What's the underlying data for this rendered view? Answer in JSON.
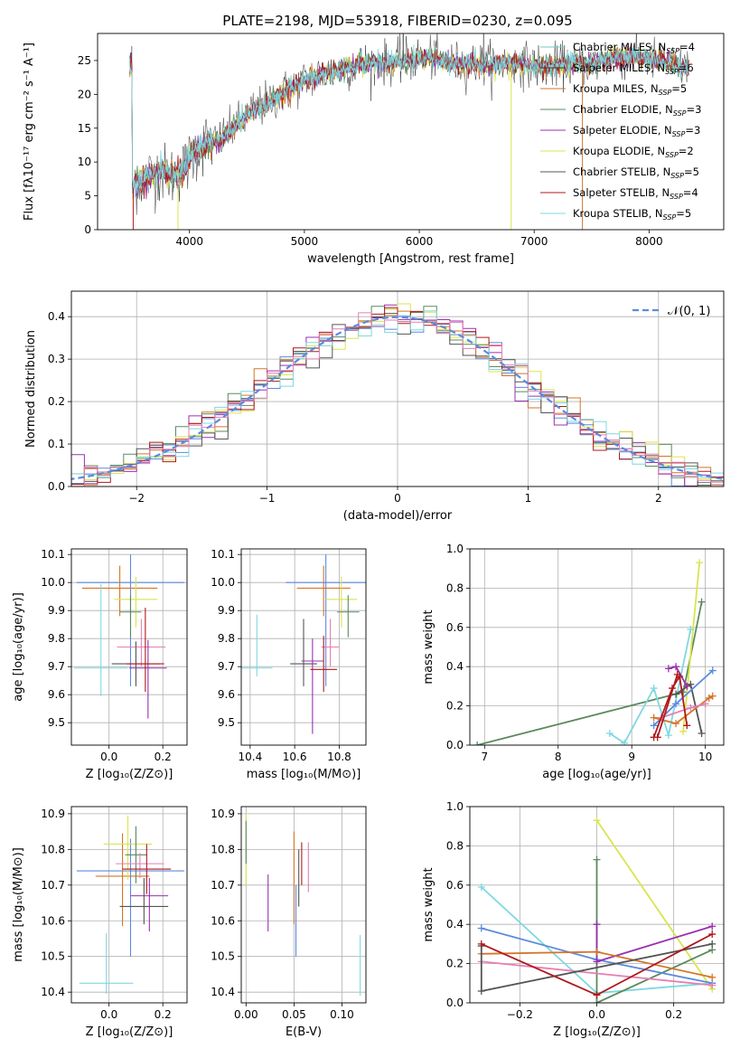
{
  "title": "PLATE=2198, MJD=53918, FIBERID=0230, z=0.095",
  "colors": {
    "Chabrier MILES": "#72c9c4",
    "Salpeter MILES": "#3a3a3a",
    "Kroupa MILES": "#d4752a",
    "Chabrier ELODIE": "#5b8a5e",
    "Salpeter ELODIE": "#9a30b0",
    "Kroupa ELODIE": "#d9e54e",
    "Chabrier STELIB": "#555555",
    "Salpeter STELIB": "#b0191c",
    "Kroupa STELIB": "#7fd8e0",
    "Blue": "#5b8ae0",
    "Pink": "#e57fb4",
    "Gaussian": "#5b8ae0"
  },
  "chart_data": [
    {
      "panel": "spectrum",
      "type": "line",
      "xlabel": "wavelength [Angstrom, rest frame]",
      "ylabel": "Flux [fλ10⁻¹⁷ erg cm⁻² s⁻¹ A⁻¹]",
      "xlim": [
        3200,
        8650
      ],
      "ylim": [
        0,
        29
      ],
      "xticks": [
        4000,
        5000,
        6000,
        7000,
        8000
      ],
      "yticks": [
        0,
        5,
        10,
        15,
        20,
        25
      ],
      "legend": [
        {
          "name": "Chabrier MILES, N",
          "sub": "SSP",
          "n": "=4",
          "color": "#72c9c4"
        },
        {
          "name": "Salpeter MILES, N",
          "sub": "SSP",
          "n": "=6",
          "color": "#3a3a3a"
        },
        {
          "name": "Kroupa MILES, N",
          "sub": "SSP",
          "n": "=5",
          "color": "#d4752a"
        },
        {
          "name": "Chabrier ELODIE, N",
          "sub": "SSP",
          "n": "=3",
          "color": "#5b8a5e"
        },
        {
          "name": "Salpeter ELODIE, N",
          "sub": "SSP",
          "n": "=3",
          "color": "#9a30b0"
        },
        {
          "name": "Kroupa ELODIE, N",
          "sub": "SSP",
          "n": "=2",
          "color": "#d9e54e"
        },
        {
          "name": "Chabrier STELIB, N",
          "sub": "SSP",
          "n": "=5",
          "color": "#555555"
        },
        {
          "name": "Salpeter STELIB, N",
          "sub": "SSP",
          "n": "=4",
          "color": "#b0191c"
        },
        {
          "name": "Kroupa STELIB, N",
          "sub": "SSP",
          "n": "=5",
          "color": "#7fd8e0"
        }
      ],
      "continuum": [
        [
          3500,
          6.0
        ],
        [
          3550,
          7.0
        ],
        [
          3650,
          8.0
        ],
        [
          3750,
          8.5
        ],
        [
          3850,
          8.0
        ],
        [
          3950,
          9.0
        ],
        [
          4050,
          11.5
        ],
        [
          4150,
          13.0
        ],
        [
          4250,
          13.0
        ],
        [
          4350,
          14.5
        ],
        [
          4450,
          16.0
        ],
        [
          4550,
          17.5
        ],
        [
          4700,
          19.0
        ],
        [
          4850,
          20.5
        ],
        [
          5000,
          22.0
        ],
        [
          5150,
          23.0
        ],
        [
          5300,
          23.5
        ],
        [
          5500,
          24.5
        ],
        [
          5700,
          24.7
        ],
        [
          5900,
          25.0
        ],
        [
          6100,
          25.5
        ],
        [
          6300,
          24.5
        ],
        [
          6500,
          24.5
        ],
        [
          6700,
          24.5
        ],
        [
          6900,
          24.5
        ],
        [
          7100,
          24.0
        ],
        [
          7300,
          24.5
        ],
        [
          7500,
          24.5
        ],
        [
          7700,
          25.5
        ],
        [
          7900,
          25.5
        ],
        [
          8100,
          25.0
        ],
        [
          8300,
          24.0
        ]
      ],
      "spikes": [
        {
          "x": 3510,
          "y": -1,
          "color": "#b0191c"
        },
        {
          "x": 3900,
          "y": -1,
          "color": "#d9e54e"
        },
        {
          "x": 6800,
          "y": -1,
          "color": "#d9e54e"
        },
        {
          "x": 6780,
          "y": 22,
          "color": "#d9e54e"
        },
        {
          "x": 7420,
          "y": -1,
          "color": "#d4752a"
        },
        {
          "x": 5860,
          "y": 30,
          "color": "#3a3a3a"
        },
        {
          "x": 6560,
          "y": 31,
          "color": "#555555"
        }
      ]
    },
    {
      "panel": "residual-histogram",
      "type": "histogram",
      "xlabel": "(data-model)/error",
      "ylabel": "Normed distribution",
      "xlim": [
        -2.5,
        2.5
      ],
      "ylim": [
        0,
        0.46
      ],
      "xticks": [
        -2,
        -1,
        0,
        1,
        2
      ],
      "yticks": [
        0.0,
        0.1,
        0.2,
        0.3,
        0.4
      ],
      "legend": [
        {
          "name": "𝒩(0, 1)",
          "color": "#5b8ae0",
          "style": "dashed"
        }
      ],
      "bin_width": 0.1,
      "series_colors": [
        "#5b8ae0",
        "#d4752a",
        "#5b8a5e",
        "#9a30b0",
        "#d9e54e",
        "#555555",
        "#b0191c",
        "#7fd8e0",
        "#e57fb4"
      ]
    },
    {
      "panel": "age-vs-Z",
      "type": "errorbar",
      "xlabel": "Z [log₁₀(Z/Z⊙)]",
      "ylabel": "age  [log₁₀(age/yr)]",
      "xlim": [
        -0.14,
        0.29
      ],
      "ylim": [
        9.42,
        10.12
      ],
      "xticks": [
        0.0,
        0.2
      ],
      "yticks": [
        9.5,
        9.6,
        9.7,
        9.8,
        9.9,
        10.0,
        10.1
      ],
      "points": [
        {
          "color": "#5b8ae0",
          "x": 0.08,
          "xerr": 0.2,
          "y": 10.0,
          "yerr": [
            0.37,
            0.1
          ]
        },
        {
          "color": "#d4752a",
          "x": 0.04,
          "xerr": 0.14,
          "y": 9.98,
          "yerr": [
            0.1,
            0.08
          ]
        },
        {
          "color": "#d9e54e",
          "x": 0.1,
          "xerr": 0.08,
          "y": 9.94,
          "yerr": [
            0.1,
            0.08
          ]
        },
        {
          "color": "#5b8a5e",
          "x": 0.08,
          "xerr": 0.04,
          "y": 9.895,
          "yerr": [
            0.09,
            0.06
          ]
        },
        {
          "color": "#e57fb4",
          "x": 0.12,
          "xerr": 0.09,
          "y": 9.77,
          "yerr": [
            0.07,
            0.1
          ]
        },
        {
          "color": "#7fd8e0",
          "x": -0.03,
          "xerr": 0.1,
          "y": 9.695,
          "yerr": [
            0.1,
            0.3
          ]
        },
        {
          "color": "#555555",
          "x": 0.1,
          "xerr": 0.09,
          "y": 9.71,
          "yerr": [
            0.08,
            0.08
          ]
        },
        {
          "color": "#9a30b0",
          "x": 0.145,
          "xerr": 0.07,
          "y": 9.695,
          "yerr": [
            0.18,
            0.1
          ]
        },
        {
          "color": "#b0191c",
          "x": 0.135,
          "xerr": 0.07,
          "y": 9.71,
          "yerr": [
            0.1,
            0.2
          ]
        }
      ]
    },
    {
      "panel": "age-vs-mass",
      "type": "errorbar",
      "xlabel": "mass [log₁₀(M/M⊙)]",
      "ylabel": "",
      "xlim": [
        10.36,
        10.92
      ],
      "ylim": [
        9.42,
        10.12
      ],
      "xticks": [
        10.4,
        10.6,
        10.8
      ],
      "yticks": [
        9.5,
        9.6,
        9.7,
        9.8,
        9.9,
        10.0,
        10.1
      ],
      "points": [
        {
          "color": "#5b8ae0",
          "x": 10.74,
          "xerr": 0.18,
          "y": 10.0,
          "yerr": [
            0.37,
            0.1
          ]
        },
        {
          "color": "#d4752a",
          "x": 10.73,
          "xerr": 0.12,
          "y": 9.98,
          "yerr": [
            0.1,
            0.08
          ]
        },
        {
          "color": "#d9e54e",
          "x": 10.81,
          "xerr": 0.07,
          "y": 9.94,
          "yerr": [
            0.1,
            0.08
          ]
        },
        {
          "color": "#5b8a5e",
          "x": 10.84,
          "xerr": 0.05,
          "y": 9.895,
          "yerr": [
            0.09,
            0.06
          ]
        },
        {
          "color": "#e57fb4",
          "x": 10.76,
          "xerr": 0.04,
          "y": 9.77,
          "yerr": [
            0.07,
            0.1
          ]
        },
        {
          "color": "#7fd8e0",
          "x": 10.43,
          "xerr": 0.07,
          "y": 9.695,
          "yerr": [
            0.03,
            0.19
          ]
        },
        {
          "color": "#555555",
          "x": 10.64,
          "xerr": 0.06,
          "y": 9.71,
          "yerr": [
            0.08,
            0.16
          ]
        },
        {
          "color": "#9a30b0",
          "x": 10.68,
          "xerr": 0.05,
          "y": 9.72,
          "yerr": [
            0.26,
            0.08
          ]
        },
        {
          "color": "#b0191c",
          "x": 10.73,
          "xerr": 0.06,
          "y": 9.69,
          "yerr": [
            0.08,
            0.12
          ]
        }
      ]
    },
    {
      "panel": "massweight-vs-age",
      "type": "line",
      "xlabel": "age  [log₁₀(age/yr)]",
      "ylabel": "mass weight",
      "xlim": [
        6.8,
        10.25
      ],
      "ylim": [
        0.0,
        1.0
      ],
      "xticks": [
        7,
        8,
        9,
        10
      ],
      "yticks": [
        0.0,
        0.2,
        0.4,
        0.6,
        0.8,
        1.0
      ],
      "series": [
        {
          "color": "#5b8a5e",
          "x": [
            6.9,
            9.7,
            9.95
          ],
          "y": [
            0.0,
            0.27,
            0.73
          ]
        },
        {
          "color": "#d9e54e",
          "x": [
            9.7,
            9.92
          ],
          "y": [
            0.07,
            0.93
          ]
        },
        {
          "color": "#7fd8e0",
          "x": [
            8.7,
            8.9,
            9.3,
            9.5,
            9.8
          ],
          "y": [
            0.06,
            0.01,
            0.29,
            0.05,
            0.59
          ]
        },
        {
          "color": "#555555",
          "x": [
            9.6,
            9.8,
            9.95
          ],
          "y": [
            0.26,
            0.31,
            0.06
          ]
        },
        {
          "color": "#9a30b0",
          "x": [
            9.5,
            9.6,
            9.75
          ],
          "y": [
            0.39,
            0.4,
            0.3
          ]
        },
        {
          "color": "#5b8ae0",
          "x": [
            9.3,
            9.6,
            10.1
          ],
          "y": [
            0.1,
            0.21,
            0.38
          ]
        },
        {
          "color": "#d4752a",
          "x": [
            9.3,
            9.6,
            10.05,
            10.1
          ],
          "y": [
            0.14,
            0.11,
            0.24,
            0.25
          ]
        },
        {
          "color": "#e57fb4",
          "x": [
            9.4,
            9.8,
            10.0
          ],
          "y": [
            0.14,
            0.19,
            0.21
          ]
        },
        {
          "color": "#b0191c",
          "x": [
            9.3,
            9.55,
            9.65,
            9.75
          ],
          "y": [
            0.04,
            0.29,
            0.35,
            0.1
          ]
        },
        {
          "color": "#b0191c",
          "x": [
            9.35,
            9.62
          ],
          "y": [
            0.04,
            0.36
          ]
        }
      ]
    },
    {
      "panel": "mass-vs-Z",
      "type": "errorbar",
      "xlabel": "Z [log₁₀(Z/Z⊙)]",
      "ylabel": "mass [log₁₀(M/M⊙)]",
      "xlim": [
        -0.14,
        0.29
      ],
      "ylim": [
        10.37,
        10.92
      ],
      "xticks": [
        0.0,
        0.2
      ],
      "yticks": [
        10.4,
        10.5,
        10.6,
        10.7,
        10.8,
        10.9
      ],
      "points": [
        {
          "color": "#5b8ae0",
          "x": 0.08,
          "xerr": 0.2,
          "y": 10.74,
          "yerr": [
            0.24,
            0.09
          ]
        },
        {
          "color": "#d4752a",
          "x": 0.05,
          "xerr": 0.1,
          "y": 10.725,
          "yerr": [
            0.14,
            0.12
          ]
        },
        {
          "color": "#d9e54e",
          "x": 0.07,
          "xerr": 0.09,
          "y": 10.815,
          "yerr": [
            0.1,
            0.08
          ]
        },
        {
          "color": "#5b8a5e",
          "x": 0.1,
          "xerr": 0.04,
          "y": 10.785,
          "yerr": [
            0.08,
            0.08
          ]
        },
        {
          "color": "#e57fb4",
          "x": 0.115,
          "xerr": 0.09,
          "y": 10.76,
          "yerr": [
            0.04,
            0.03
          ]
        },
        {
          "color": "#7fd8e0",
          "x": -0.01,
          "xerr": 0.1,
          "y": 10.425,
          "yerr": [
            0.03,
            0.14
          ]
        },
        {
          "color": "#555555",
          "x": 0.13,
          "xerr": 0.09,
          "y": 10.64,
          "yerr": [
            0.05,
            0.08
          ]
        },
        {
          "color": "#9a30b0",
          "x": 0.15,
          "xerr": 0.07,
          "y": 10.67,
          "yerr": [
            0.1,
            0.05
          ]
        },
        {
          "color": "#b0191c",
          "x": 0.14,
          "xerr": 0.09,
          "y": 10.745,
          "yerr": [
            0.07,
            0.07
          ]
        }
      ]
    },
    {
      "panel": "mass-vs-EBV",
      "type": "errorbar",
      "xlabel": "E(B-V)",
      "ylabel": "",
      "xlim": [
        -0.005,
        0.125
      ],
      "ylim": [
        10.37,
        10.92
      ],
      "xticks": [
        0.0,
        0.05,
        0.1
      ],
      "yticks": [
        10.4,
        10.5,
        10.6,
        10.7,
        10.8,
        10.9
      ],
      "points": [
        {
          "color": "#d9e54e",
          "x": 0.0,
          "xerr": 0.0,
          "y": 10.8,
          "yerr": [
            0.1,
            0.1
          ]
        },
        {
          "color": "#5b8a5e",
          "x": 0.0,
          "xerr": 0.0,
          "y": 10.82,
          "yerr": [
            0.06,
            0.06
          ]
        },
        {
          "color": "#9a30b0",
          "x": 0.023,
          "xerr": 0.0,
          "y": 10.65,
          "yerr": [
            0.08,
            0.08
          ]
        },
        {
          "color": "#d4752a",
          "x": 0.05,
          "xerr": 0.0,
          "y": 10.72,
          "yerr": [
            0.13,
            0.13
          ]
        },
        {
          "color": "#5b8ae0",
          "x": 0.052,
          "xerr": 0.0,
          "y": 10.6,
          "yerr": [
            0.1,
            0.1
          ]
        },
        {
          "color": "#555555",
          "x": 0.055,
          "xerr": 0.0,
          "y": 10.72,
          "yerr": [
            0.08,
            0.08
          ]
        },
        {
          "color": "#b0191c",
          "x": 0.058,
          "xerr": 0.0,
          "y": 10.76,
          "yerr": [
            0.06,
            0.06
          ]
        },
        {
          "color": "#e57fb4",
          "x": 0.065,
          "xerr": 0.0,
          "y": 10.75,
          "yerr": [
            0.07,
            0.07
          ]
        },
        {
          "color": "#7fd8e0",
          "x": 0.119,
          "xerr": 0.0,
          "y": 10.47,
          "yerr": [
            0.08,
            0.09
          ]
        }
      ]
    },
    {
      "panel": "massweight-vs-Z",
      "type": "line",
      "xlabel": "Z [log₁₀(Z/Z⊙)]",
      "ylabel": "mass weight",
      "xlim": [
        -0.33,
        0.33
      ],
      "ylim": [
        0.0,
        1.0
      ],
      "xticks": [
        -0.2,
        0.0,
        0.2
      ],
      "yticks": [
        0.0,
        0.2,
        0.4,
        0.6,
        0.8,
        1.0
      ],
      "series": [
        {
          "color": "#7fd8e0",
          "x": [
            -0.3,
            0.0,
            0.3
          ],
          "y": [
            0.59,
            0.05,
            0.1
          ]
        },
        {
          "color": "#d9e54e",
          "x": [
            0.0,
            0.3
          ],
          "y": [
            0.93,
            0.07
          ]
        },
        {
          "color": "#5b8a5e",
          "x": [
            0.0,
            0.0,
            0.3
          ],
          "y": [
            0.73,
            0.0,
            0.27
          ]
        },
        {
          "color": "#5b8ae0",
          "x": [
            -0.3,
            0.0,
            0.3
          ],
          "y": [
            0.38,
            0.22,
            0.1
          ]
        },
        {
          "color": "#9a30b0",
          "x": [
            0.0,
            0.0,
            0.3
          ],
          "y": [
            0.4,
            0.21,
            0.39
          ]
        },
        {
          "color": "#d4752a",
          "x": [
            -0.3,
            0.0,
            0.3
          ],
          "y": [
            0.25,
            0.26,
            0.13
          ]
        },
        {
          "color": "#e57fb4",
          "x": [
            -0.3,
            0.3
          ],
          "y": [
            0.21,
            0.09
          ]
        },
        {
          "color": "#555555",
          "x": [
            -0.3,
            -0.3,
            0.3
          ],
          "y": [
            0.29,
            0.06,
            0.3
          ]
        },
        {
          "color": "#b0191c",
          "x": [
            -0.3,
            0.0,
            0.3
          ],
          "y": [
            0.3,
            0.04,
            0.35
          ]
        }
      ]
    }
  ]
}
